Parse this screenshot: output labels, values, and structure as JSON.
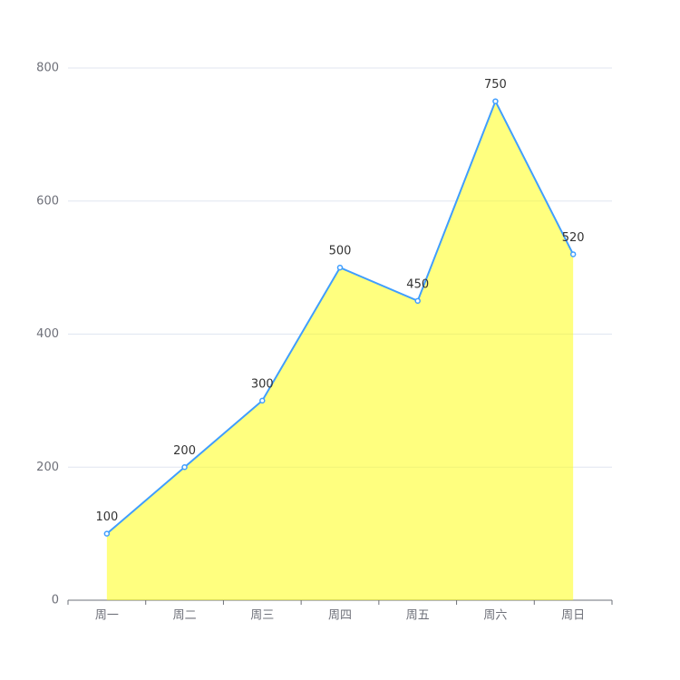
{
  "chart_data": {
    "type": "line",
    "categories": [
      "周一",
      "周二",
      "周三",
      "周四",
      "周五",
      "周六",
      "周日"
    ],
    "values": [
      100,
      200,
      300,
      500,
      450,
      750,
      520
    ],
    "color": "#409eff",
    "area_color": "#ffff00",
    "ylim": [
      0,
      800
    ],
    "yticks": [
      0,
      200,
      400,
      600,
      800
    ],
    "grid": true
  }
}
